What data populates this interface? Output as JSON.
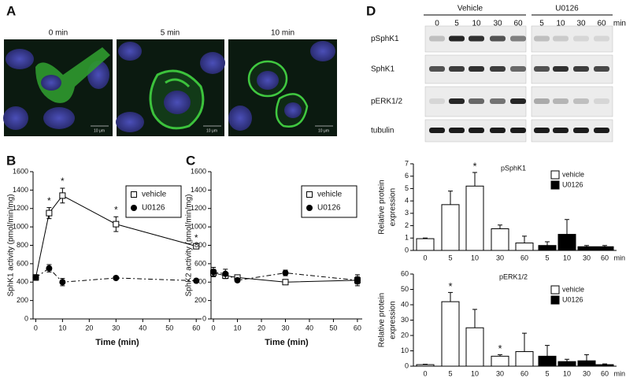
{
  "panel_labels": [
    "A",
    "B",
    "C",
    "D"
  ],
  "microscopy": {
    "titles": [
      "0 min",
      "5 min",
      "10 min"
    ],
    "scale_bar": "10 μm"
  },
  "blot": {
    "groups": [
      "Vehicle",
      "U0126"
    ],
    "lanes": [
      [
        "0",
        "5",
        "10",
        "30",
        "60"
      ],
      [
        "5",
        "10",
        "30",
        "60"
      ]
    ],
    "unit": "min",
    "rows": [
      "pSphK1",
      "SphK1",
      "pERK1/2",
      "tubulin"
    ]
  },
  "chart_data": [
    {
      "type": "line",
      "y_label": "SphK1 activity (pmol/min/mg)",
      "x_label": "Time (min)",
      "xlim": [
        -1,
        62
      ],
      "xticks": [
        0,
        10,
        20,
        30,
        40,
        50,
        60
      ],
      "ylim": [
        0,
        1600
      ],
      "yticks": [
        0,
        200,
        400,
        600,
        800,
        1000,
        1200,
        1400,
        1600
      ],
      "legend": "upper right",
      "x": [
        0,
        5,
        10,
        30,
        60
      ],
      "series": [
        {
          "name": "vehicle",
          "marker": "square",
          "line_style": "solid",
          "color": "#000000",
          "values": [
            450,
            1150,
            1340,
            1030,
            790
          ],
          "errors": [
            30,
            60,
            80,
            80,
            15
          ],
          "significance": [
            null,
            "*",
            "*",
            "*",
            "*"
          ]
        },
        {
          "name": "U0126",
          "marker": "circle",
          "line_style": "dashdot",
          "color": "#000000",
          "values": [
            450,
            550,
            400,
            445,
            415
          ],
          "errors": [
            30,
            40,
            40,
            10,
            10
          ]
        }
      ]
    },
    {
      "type": "line",
      "y_label": "SphK2 activity (pmol/min/mg)",
      "x_label": "Time (min)",
      "xlim": [
        -1,
        62
      ],
      "xticks": [
        0,
        10,
        20,
        30,
        40,
        50,
        60
      ],
      "ylim": [
        0,
        1600
      ],
      "yticks": [
        0,
        200,
        400,
        600,
        800,
        1000,
        1200,
        1400,
        1600
      ],
      "legend": "upper right",
      "x": [
        0,
        5,
        10,
        30,
        60
      ],
      "series": [
        {
          "name": "vehicle",
          "marker": "square",
          "line_style": "solid",
          "color": "#000000",
          "values": [
            500,
            470,
            450,
            400,
            420
          ],
          "errors": [
            40,
            30,
            20,
            20,
            60
          ]
        },
        {
          "name": "U0126",
          "marker": "circle",
          "line_style": "dashdot",
          "color": "#000000",
          "values": [
            510,
            490,
            420,
            500,
            420
          ],
          "errors": [
            50,
            50,
            20,
            30,
            40
          ]
        }
      ]
    },
    {
      "type": "bar",
      "title": "pSphK1",
      "y_label": [
        "Relative protein",
        "expression"
      ],
      "x_unit": "min",
      "ylim": [
        0,
        7
      ],
      "yticks": [
        0,
        1,
        2,
        3,
        4,
        5,
        6,
        7
      ],
      "legend": "upper right",
      "series": [
        {
          "name": "vehicle",
          "color": "#ffffff",
          "categories": [
            "0",
            "5",
            "10",
            "30",
            "60"
          ],
          "values": [
            0.95,
            3.7,
            5.2,
            1.75,
            0.6
          ],
          "errors": [
            0.05,
            1.1,
            1.1,
            0.3,
            0.55
          ],
          "significance": [
            null,
            null,
            "*",
            null,
            null
          ]
        },
        {
          "name": "U0126",
          "color": "#000000",
          "categories": [
            "5",
            "10",
            "30",
            "60"
          ],
          "values": [
            0.4,
            1.3,
            0.3,
            0.3
          ],
          "errors": [
            0.3,
            1.2,
            0.1,
            0.1
          ]
        }
      ]
    },
    {
      "type": "bar",
      "title": "pERK1/2",
      "y_label": [
        "Relative protein",
        "expression"
      ],
      "x_unit": "min",
      "ylim": [
        0,
        60
      ],
      "yticks": [
        0,
        10,
        20,
        30,
        40,
        50,
        60
      ],
      "legend": "upper right",
      "series": [
        {
          "name": "vehicle",
          "color": "#ffffff",
          "categories": [
            "0",
            "5",
            "10",
            "30",
            "60"
          ],
          "values": [
            1,
            42,
            25,
            6.5,
            9.5
          ],
          "errors": [
            0.3,
            6,
            12,
            1,
            12
          ],
          "significance": [
            null,
            "*",
            null,
            "*",
            null
          ]
        },
        {
          "name": "U0126",
          "color": "#000000",
          "categories": [
            "5",
            "10",
            "30",
            "60"
          ],
          "values": [
            6.5,
            3,
            3.5,
            1
          ],
          "errors": [
            7,
            1.5,
            4,
            0.5
          ]
        }
      ]
    }
  ]
}
